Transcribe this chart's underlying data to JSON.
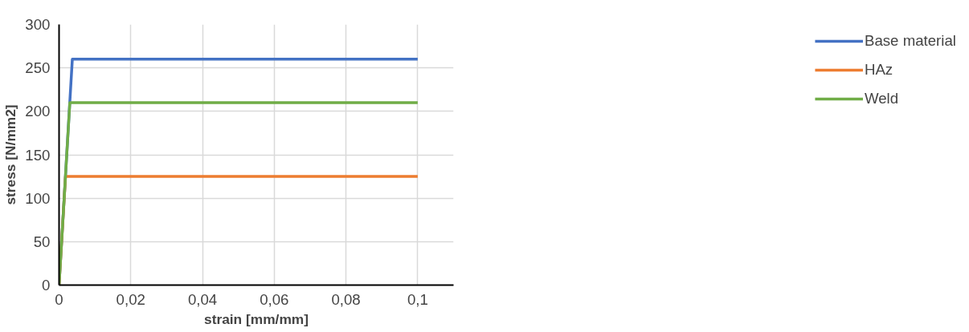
{
  "chart_data": {
    "type": "line",
    "xlabel": "strain [mm/mm]",
    "ylabel": "stress [N/mm2]",
    "xlim": [
      0,
      0.11
    ],
    "xticks": [
      {
        "value": 0,
        "label": "0"
      },
      {
        "value": 0.02,
        "label": "0,02"
      },
      {
        "value": 0.04,
        "label": "0,04"
      },
      {
        "value": 0.06,
        "label": "0,06"
      },
      {
        "value": 0.08,
        "label": "0,08"
      },
      {
        "value": 0.1,
        "label": "0,1"
      }
    ],
    "ylim": [
      0,
      300
    ],
    "yticks": [
      0,
      50,
      100,
      150,
      200,
      250,
      300
    ],
    "grid": true,
    "legend": "right",
    "marker": "none",
    "line_style": "solid",
    "series": [
      {
        "name": "Base material",
        "color": "#4472c4",
        "x": [
          0,
          0.0037,
          0.1
        ],
        "values": [
          0,
          260,
          260
        ]
      },
      {
        "name": "HAz",
        "color": "#ed7d31",
        "x": [
          0,
          0.0018,
          0.1
        ],
        "values": [
          0,
          125,
          125
        ]
      },
      {
        "name": "Weld",
        "color": "#70ad47",
        "x": [
          0,
          0.003,
          0.1
        ],
        "values": [
          0,
          210,
          210
        ]
      }
    ]
  }
}
